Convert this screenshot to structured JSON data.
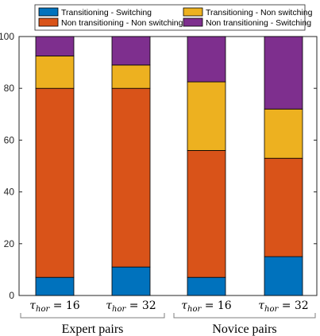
{
  "chart_data": {
    "type": "bar",
    "stacked": true,
    "categories": [
      "τhor = 16",
      "τhor = 32",
      "τhor = 16",
      "τhor = 32"
    ],
    "category_parts": [
      {
        "symbol": "τ",
        "subscript": "hor",
        "rest": " = 16"
      },
      {
        "symbol": "τ",
        "subscript": "hor",
        "rest": " = 32"
      },
      {
        "symbol": "τ",
        "subscript": "hor",
        "rest": " = 16"
      },
      {
        "symbol": "τ",
        "subscript": "hor",
        "rest": " = 32"
      }
    ],
    "groups": [
      {
        "label": "Expert pairs",
        "categories": [
          0,
          1
        ]
      },
      {
        "label": "Novice pairs",
        "categories": [
          2,
          3
        ]
      }
    ],
    "series": [
      {
        "name": "Transitioning - Switching",
        "color": "#0072BD",
        "values": [
          7,
          11,
          7,
          15
        ]
      },
      {
        "name": "Non transitioning - Non switching",
        "color": "#D95319",
        "values": [
          73,
          69,
          49,
          38
        ]
      },
      {
        "name": "Transitioning - Non switching",
        "color": "#EDB120",
        "values": [
          12.5,
          9,
          26.5,
          19
        ]
      },
      {
        "name": "Non transitioning - Switching",
        "color": "#7E2F8E",
        "values": [
          7.5,
          11,
          17.5,
          28
        ]
      }
    ],
    "legend_order": [
      0,
      2,
      1,
      3
    ],
    "ylim": [
      0,
      100
    ],
    "yticks": [
      0,
      20,
      40,
      60,
      80,
      100
    ],
    "grid": false,
    "legend_position": "top"
  }
}
